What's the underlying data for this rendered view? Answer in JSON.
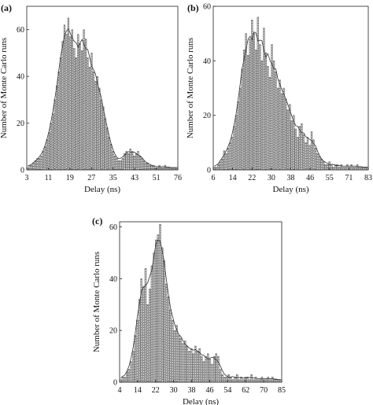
{
  "panels": [
    {
      "id": "a",
      "label": "(a)",
      "xlabel": "Delay (ns)",
      "ylabel": "Number of Monte Carlo runs",
      "xticks": [
        "3",
        "11",
        "19",
        "27",
        "35",
        "43",
        "51",
        "76"
      ],
      "yticks": [
        "0",
        "20",
        "40",
        "60"
      ]
    },
    {
      "id": "b",
      "label": "(b)",
      "xlabel": "Delay (ns)",
      "ylabel": "Number of Monte Carlo runs",
      "xticks": [
        "6",
        "14",
        "22",
        "30",
        "38",
        "46",
        "55",
        "71",
        "83"
      ],
      "yticks": [
        "0",
        "20",
        "40",
        "60"
      ]
    },
    {
      "id": "c",
      "label": "(c)",
      "xlabel": "Delay (ns)",
      "ylabel": "Number of Monte Carlo runs",
      "xticks": [
        "4",
        "14",
        "22",
        "30",
        "38",
        "46",
        "54",
        "62",
        "70",
        "85"
      ],
      "yticks": [
        "0",
        "20",
        "40",
        "60"
      ]
    }
  ],
  "chart_data": [
    {
      "type": "bar",
      "panel": "(a)",
      "title": "",
      "xlabel": "Delay (ns)",
      "ylabel": "Number of Monte Carlo runs",
      "ylim": [
        0,
        70
      ],
      "grid": false,
      "values": [
        1,
        2,
        2,
        3,
        4,
        5,
        5,
        6,
        8,
        10,
        13,
        16,
        20,
        24,
        30,
        36,
        42,
        48,
        55,
        62,
        58,
        65,
        57,
        60,
        52,
        48,
        58,
        54,
        51,
        60,
        56,
        48,
        44,
        50,
        42,
        38,
        40,
        35,
        30,
        27,
        22,
        18,
        14,
        11,
        8,
        6,
        5,
        4,
        4,
        5,
        7,
        8,
        7,
        9,
        8,
        6,
        7,
        8,
        6,
        5,
        4,
        3,
        3,
        2,
        2,
        2,
        1,
        1,
        2,
        1,
        1,
        2,
        1,
        1,
        1,
        1,
        1,
        1
      ]
    },
    {
      "type": "bar",
      "panel": "(b)",
      "title": "",
      "xlabel": "Delay (ns)",
      "ylabel": "Number of Monte Carlo runs",
      "ylim": [
        0,
        60
      ],
      "grid": false,
      "values": [
        1,
        1,
        2,
        3,
        4,
        7,
        6,
        8,
        10,
        12,
        16,
        20,
        25,
        30,
        37,
        44,
        50,
        42,
        48,
        55,
        50,
        44,
        56,
        46,
        40,
        52,
        43,
        38,
        34,
        46,
        40,
        36,
        30,
        33,
        28,
        30,
        26,
        22,
        24,
        18,
        20,
        15,
        12,
        16,
        17,
        13,
        10,
        12,
        9,
        14,
        11,
        8,
        6,
        5,
        4,
        3,
        2,
        2,
        3,
        2,
        1,
        2,
        2,
        1,
        2,
        1,
        1,
        2,
        1,
        2,
        1,
        1,
        2,
        1,
        1,
        1,
        1,
        1
      ]
    },
    {
      "type": "bar",
      "panel": "(c)",
      "title": "",
      "xlabel": "Delay (ns)",
      "ylabel": "Number of Monte Carlo runs",
      "ylim": [
        0,
        62
      ],
      "grid": false,
      "values": [
        1,
        2,
        2,
        4,
        5,
        8,
        12,
        18,
        24,
        32,
        40,
        37,
        44,
        30,
        36,
        45,
        50,
        55,
        57,
        61,
        52,
        47,
        38,
        33,
        28,
        24,
        20,
        22,
        18,
        17,
        15,
        16,
        14,
        12,
        13,
        11,
        14,
        12,
        13,
        10,
        8,
        10,
        11,
        9,
        7,
        10,
        11,
        10,
        5,
        3,
        2,
        2,
        3,
        2,
        1,
        2,
        3,
        1,
        2,
        1,
        2,
        2,
        1,
        3,
        1,
        2,
        1,
        1,
        2,
        1,
        1,
        2,
        1,
        2,
        1,
        1,
        1,
        1
      ]
    }
  ]
}
